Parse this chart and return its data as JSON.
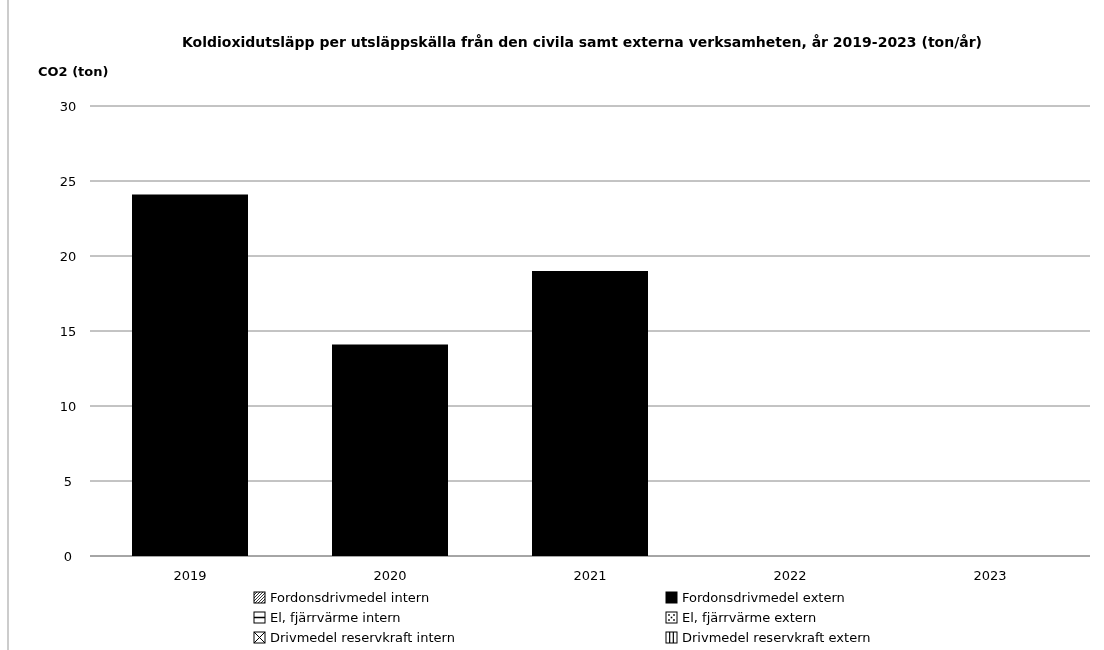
{
  "chart_data": {
    "type": "bar",
    "title": "Koldioxidutsläpp per utsläppskälla från den civila samt externa verksamheten, år 2019-2023 (ton/år)",
    "ylabel": "CO2 (ton)",
    "categories": [
      "2019",
      "2020",
      "2021",
      "2022",
      "2023"
    ],
    "ylim": [
      0,
      30
    ],
    "yticks": [
      0,
      5,
      10,
      15,
      20,
      25,
      30
    ],
    "grid": "y",
    "legend": "bottom",
    "series": [
      {
        "name": "Fordonsdrivmedel intern",
        "color": "#000000",
        "values": [
          null,
          null,
          null,
          null,
          null
        ]
      },
      {
        "name": "Fordonsdrivmedel extern",
        "color": "#000000",
        "values": [
          24.1,
          14.1,
          19.0,
          null,
          null
        ]
      },
      {
        "name": "El, fjärrvärme intern",
        "color": "#000000",
        "values": [
          null,
          null,
          null,
          null,
          null
        ]
      },
      {
        "name": "El, fjärrvärme extern",
        "color": "#000000",
        "values": [
          null,
          null,
          null,
          null,
          null
        ]
      },
      {
        "name": "Drivmedel reservkraft intern",
        "color": "#000000",
        "values": [
          null,
          null,
          null,
          null,
          null
        ]
      },
      {
        "name": "Drivmedel reservkraft extern",
        "color": "#000000",
        "values": [
          null,
          null,
          null,
          null,
          null
        ]
      }
    ]
  }
}
